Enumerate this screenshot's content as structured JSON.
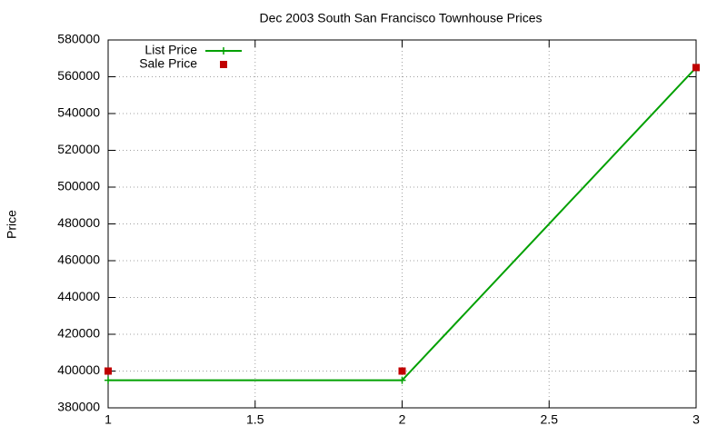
{
  "chart_data": {
    "type": "line",
    "title": "Dec 2003 South San Francisco Townhouse Prices",
    "y_label": "Price",
    "x": [
      1,
      2,
      3
    ],
    "series": [
      {
        "name": "List Price",
        "color": "#00a000",
        "mode": "linespoints",
        "values": [
          395000,
          395000,
          565000
        ]
      },
      {
        "name": "Sale Price",
        "color": "#c00000",
        "mode": "points",
        "values": [
          400000,
          400000,
          565000
        ]
      }
    ],
    "xlim": [
      1,
      3
    ],
    "xticks": [
      1,
      1.5,
      2,
      2.5,
      3
    ],
    "ylim": [
      380000,
      580000
    ],
    "yticks": [
      380000,
      400000,
      420000,
      440000,
      460000,
      480000,
      500000,
      520000,
      540000,
      560000,
      580000
    ],
    "grid": true,
    "legend": "top-left"
  }
}
